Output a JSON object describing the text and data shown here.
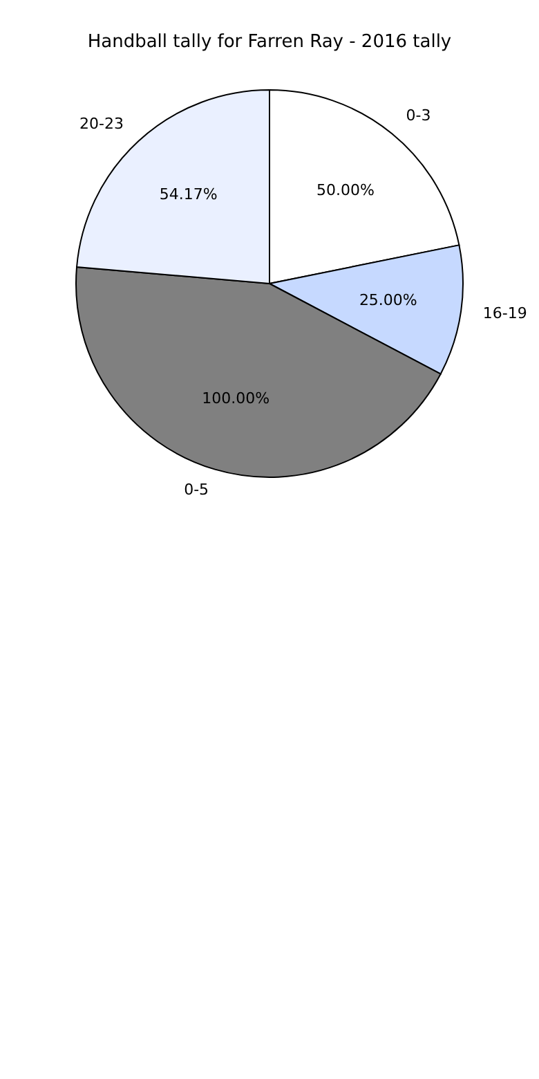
{
  "chart_data": {
    "type": "pie",
    "title": "Handball tally for Farren Ray - 2016 tally",
    "categories": [
      "0-3",
      "16-19",
      "0-5",
      "20-23"
    ],
    "values": [
      50,
      25,
      100,
      54.17
    ],
    "value_labels": [
      "50.00%",
      "25.00%",
      "100.00%",
      "54.17%"
    ],
    "colors": [
      "#ffffff",
      "#c6d9ff",
      "#808080",
      "#eaf0ff"
    ]
  }
}
